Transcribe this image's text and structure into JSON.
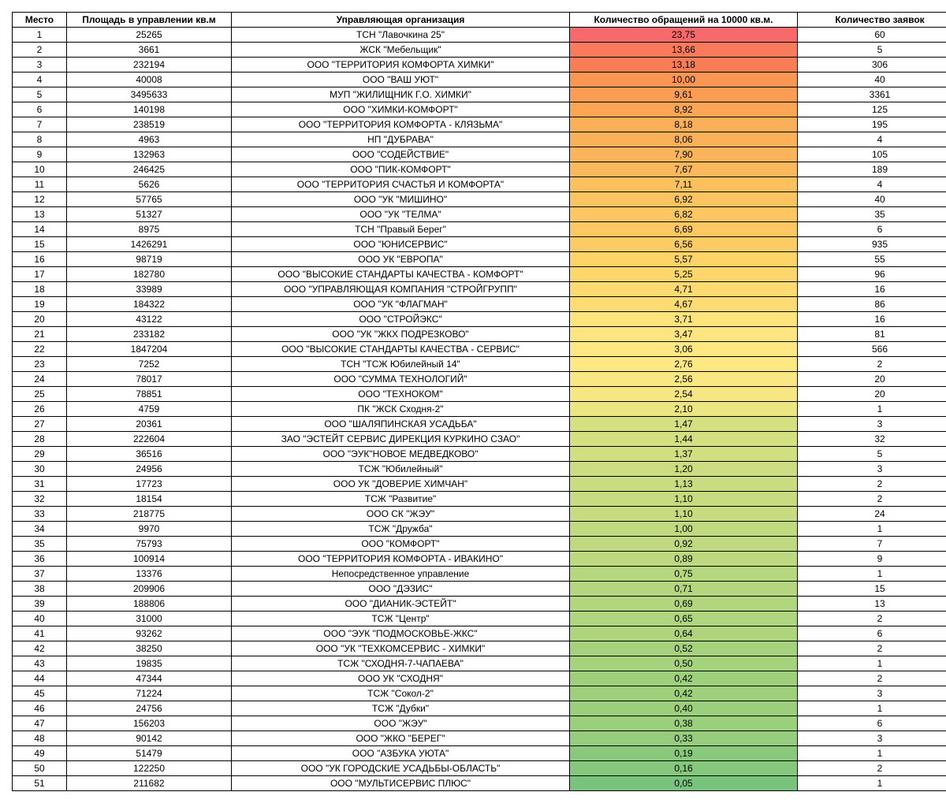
{
  "table": {
    "columns": [
      "Место",
      "Площадь в управлении кв.м",
      "Управляющая организация",
      "Количество обращений на 10000 кв.м.",
      "Количество заявок"
    ],
    "rows": [
      {
        "place": "1",
        "area": "25265",
        "org": "ТСН \"Лавочкина 25\"",
        "ratio": "23,75",
        "count": "60",
        "ratio_color": "#f8696b"
      },
      {
        "place": "2",
        "area": "3661",
        "org": "ЖСК \"Мебельщик\"",
        "ratio": "13,66",
        "count": "5",
        "ratio_color": "#f97b5b"
      },
      {
        "place": "3",
        "area": "232194",
        "org": "ООО \"ТЕРРИТОРИЯ КОМФОРТА ХИМКИ\"",
        "ratio": "13,18",
        "count": "306",
        "ratio_color": "#f97e58"
      },
      {
        "place": "4",
        "area": "40008",
        "org": "ООО \"ВАШ УЮТ\"",
        "ratio": "10,00",
        "count": "40",
        "ratio_color": "#fa9653"
      },
      {
        "place": "5",
        "area": "3495633",
        "org": "МУП \"ЖИЛИЩНИК Г.О. ХИМКИ\"",
        "ratio": "9,61",
        "count": "3361",
        "ratio_color": "#fa9c53"
      },
      {
        "place": "6",
        "area": "140198",
        "org": "ООО \"ХИМКИ-КОМФОРТ\"",
        "ratio": "8,92",
        "count": "125",
        "ratio_color": "#fba555"
      },
      {
        "place": "7",
        "area": "238519",
        "org": "ООО \"ТЕРРИТОРИЯ КОМФОРТА - КЛЯЗЬМА\"",
        "ratio": "8,18",
        "count": "195",
        "ratio_color": "#fbaf58"
      },
      {
        "place": "8",
        "area": "4963",
        "org": "НП \"ДУБРАВА\"",
        "ratio": "8,06",
        "count": "4",
        "ratio_color": "#fbb159"
      },
      {
        "place": "9",
        "area": "132963",
        "org": "ООО \"СОДЕЙСТВИЕ\"",
        "ratio": "7,90",
        "count": "105",
        "ratio_color": "#fcb45a"
      },
      {
        "place": "10",
        "area": "246425",
        "org": "ООО \"ПИК-КОМФОРТ\"",
        "ratio": "7,67",
        "count": "189",
        "ratio_color": "#fcb85c"
      },
      {
        "place": "11",
        "area": "5626",
        "org": "ООО \"ТЕРРИТОРИЯ СЧАСТЬЯ И КОМФОРТА\"",
        "ratio": "7,11",
        "count": "4",
        "ratio_color": "#fcc05f"
      },
      {
        "place": "12",
        "area": "57765",
        "org": "ООО \"УК \"МИШИНО\"",
        "ratio": "6,92",
        "count": "40",
        "ratio_color": "#fcc461"
      },
      {
        "place": "13",
        "area": "51327",
        "org": "ООО \"УК \"ТЕЛМА\"",
        "ratio": "6,82",
        "count": "35",
        "ratio_color": "#fdc662"
      },
      {
        "place": "14",
        "area": "8975",
        "org": "ТСН \"Правый Берег\"",
        "ratio": "6,69",
        "count": "6",
        "ratio_color": "#fdc863"
      },
      {
        "place": "15",
        "area": "1426291",
        "org": "ООО \"ЮНИСЕРВИС\"",
        "ratio": "6,56",
        "count": "935",
        "ratio_color": "#fdcb64"
      },
      {
        "place": "16",
        "area": "98719",
        "org": "ООО УК \"ЕВРОПА\"",
        "ratio": "5,57",
        "count": "55",
        "ratio_color": "#fed469"
      },
      {
        "place": "17",
        "area": "182780",
        "org": "ООО \"ВЫСОКИЕ СТАНДАРТЫ КАЧЕСТВА - КОМФОРТ\"",
        "ratio": "5,25",
        "count": "96",
        "ratio_color": "#fed76c"
      },
      {
        "place": "18",
        "area": "33989",
        "org": "ООО \"УПРАВЛЯЮЩАЯ КОМПАНИЯ \"СТРОЙГРУПП\"",
        "ratio": "4,71",
        "count": "16",
        "ratio_color": "#fedb72"
      },
      {
        "place": "19",
        "area": "184322",
        "org": "ООО \"УК \"ФЛАГМАН\"",
        "ratio": "4,67",
        "count": "86",
        "ratio_color": "#fedc73"
      },
      {
        "place": "20",
        "area": "43122",
        "org": "ООО \"СТРОЙЭКС\"",
        "ratio": "3,71",
        "count": "16",
        "ratio_color": "#ffe37c"
      },
      {
        "place": "21",
        "area": "233182",
        "org": "ООО \"УК \"ЖКХ ПОДРЕЗКОВО\"",
        "ratio": "3,47",
        "count": "81",
        "ratio_color": "#ffe57f"
      },
      {
        "place": "22",
        "area": "1847204",
        "org": "ООО \"ВЫСОКИЕ СТАНДАРТЫ КАЧЕСТВА - СЕРВИС\"",
        "ratio": "3,06",
        "count": "566",
        "ratio_color": "#ffe883"
      },
      {
        "place": "23",
        "area": "7252",
        "org": "ТСН \"ТСЖ Юбилейный 14\"",
        "ratio": "2,76",
        "count": "2",
        "ratio_color": "#fde883"
      },
      {
        "place": "24",
        "area": "78017",
        "org": "ООО \"СУММА ТЕХНОЛОГИЙ\"",
        "ratio": "2,56",
        "count": "20",
        "ratio_color": "#f8e783"
      },
      {
        "place": "25",
        "area": "78851",
        "org": "ООО \"ТЕХНОКОМ\"",
        "ratio": "2,54",
        "count": "20",
        "ratio_color": "#f7e783"
      },
      {
        "place": "26",
        "area": "4759",
        "org": "ПК \"ЖСК Сходня-2\"",
        "ratio": "2,10",
        "count": "1",
        "ratio_color": "#ebe582"
      },
      {
        "place": "27",
        "area": "20361",
        "org": "ООО \"ШАЛЯПИНСКАЯ УСАДЬБА\"",
        "ratio": "1,47",
        "count": "3",
        "ratio_color": "#d7e081"
      },
      {
        "place": "28",
        "area": "222604",
        "org": "ЗАО \"ЭСТЕЙТ СЕРВИС ДИРЕКЦИЯ КУРКИНО СЗАО\"",
        "ratio": "1,44",
        "count": "32",
        "ratio_color": "#d5e081"
      },
      {
        "place": "29",
        "area": "36516",
        "org": "ООО \"ЭУК\"НОВОЕ МЕДВЕДКОВО\"",
        "ratio": "1,37",
        "count": "5",
        "ratio_color": "#d2df81"
      },
      {
        "place": "30",
        "area": "24956",
        "org": "ТСЖ \"Юбилейный\"",
        "ratio": "1,20",
        "count": "3",
        "ratio_color": "#cbdd80"
      },
      {
        "place": "31",
        "area": "17723",
        "org": "ООО УК \"ДОВЕРИЕ ХИМЧАН\"",
        "ratio": "1,13",
        "count": "2",
        "ratio_color": "#c8dc80"
      },
      {
        "place": "32",
        "area": "18154",
        "org": "ТСЖ \"Развитие\"",
        "ratio": "1,10",
        "count": "2",
        "ratio_color": "#c7dc80"
      },
      {
        "place": "33",
        "area": "218775",
        "org": "ООО СК \"ЖЭУ\"",
        "ratio": "1,10",
        "count": "24",
        "ratio_color": "#c7dc80"
      },
      {
        "place": "34",
        "area": "9970",
        "org": "ТСЖ \"Дружба\"",
        "ratio": "1,00",
        "count": "1",
        "ratio_color": "#c2da7f"
      },
      {
        "place": "35",
        "area": "75793",
        "org": "ООО \"КОМФОРТ\"",
        "ratio": "0,92",
        "count": "7",
        "ratio_color": "#bed97f"
      },
      {
        "place": "36",
        "area": "100914",
        "org": "ООО \"ТЕРРИТОРИЯ КОМФОРТА - ИВАКИНО\"",
        "ratio": "0,89",
        "count": "9",
        "ratio_color": "#bcd97f"
      },
      {
        "place": "37",
        "area": "13376",
        "org": "Непосредственное управление",
        "ratio": "0,75",
        "count": "1",
        "ratio_color": "#b5d77e"
      },
      {
        "place": "38",
        "area": "209906",
        "org": "ООО \"ДЭЗИС\"",
        "ratio": "0,71",
        "count": "15",
        "ratio_color": "#b3d67e"
      },
      {
        "place": "39",
        "area": "188806",
        "org": "ООО \"ДИАНИК-ЭСТЕЙТ\"",
        "ratio": "0,69",
        "count": "13",
        "ratio_color": "#b2d67e"
      },
      {
        "place": "40",
        "area": "31000",
        "org": "ТСЖ \"Центр\"",
        "ratio": "0,65",
        "count": "2",
        "ratio_color": "#afd57e"
      },
      {
        "place": "41",
        "area": "93262",
        "org": "ООО \"ЭУК \"ПОДМОСКОВЬЕ-ЖКС\"",
        "ratio": "0,64",
        "count": "6",
        "ratio_color": "#aed57e"
      },
      {
        "place": "42",
        "area": "38250",
        "org": "ООО \"УК \"ТЕХКОМСЕРВИС - ХИМКИ\"",
        "ratio": "0,52",
        "count": "2",
        "ratio_color": "#a6d27d"
      },
      {
        "place": "43",
        "area": "19835",
        "org": "ТСЖ \"СХОДНЯ-7-ЧАПАЕВА\"",
        "ratio": "0,50",
        "count": "1",
        "ratio_color": "#a4d27d"
      },
      {
        "place": "44",
        "area": "47344",
        "org": "ООО УК \"СХОДНЯ\"",
        "ratio": "0,42",
        "count": "2",
        "ratio_color": "#9ed07c"
      },
      {
        "place": "45",
        "area": "71224",
        "org": "ТСЖ \"Сокол-2\"",
        "ratio": "0,42",
        "count": "3",
        "ratio_color": "#9ed07c"
      },
      {
        "place": "46",
        "area": "24756",
        "org": "ТСЖ \"Дубки\"",
        "ratio": "0,40",
        "count": "1",
        "ratio_color": "#9ccf7c"
      },
      {
        "place": "47",
        "area": "156203",
        "org": "ООО \"ЖЭУ\"",
        "ratio": "0,38",
        "count": "6",
        "ratio_color": "#9acf7c"
      },
      {
        "place": "48",
        "area": "90142",
        "org": "ООО \"ЖКО \"БЕРЕГ\"",
        "ratio": "0,33",
        "count": "3",
        "ratio_color": "#95cd7c"
      },
      {
        "place": "49",
        "area": "51479",
        "org": "ООО \"АЗБУКА УЮТА\"",
        "ratio": "0,19",
        "count": "1",
        "ratio_color": "#89c97c"
      },
      {
        "place": "50",
        "area": "122250",
        "org": "ООО \"УК ГОРОДСКИЕ УСАДЬБЫ-ОБЛАСТЬ\"",
        "ratio": "0,16",
        "count": "2",
        "ratio_color": "#85c87c"
      },
      {
        "place": "51",
        "area": "211682",
        "org": "ООО \"МУЛЬТИСЕРВИС ПЛЮС\"",
        "ratio": "0,05",
        "count": "1",
        "ratio_color": "#79c47c"
      }
    ],
    "col_classes": [
      "col-place",
      "col-area",
      "col-org",
      "col-ratio",
      "col-count"
    ]
  }
}
